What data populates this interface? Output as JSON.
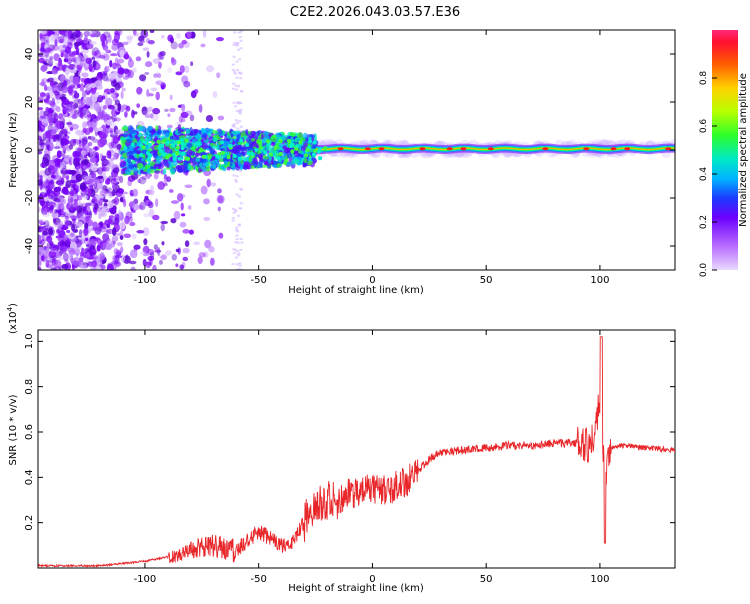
{
  "title": "C2E2.2026.043.03.57.E36",
  "chart_data": [
    {
      "type": "heatmap",
      "xlabel": "Height of straight line (km)",
      "ylabel": "Frequency (Hz)",
      "xlim": [
        -147,
        133
      ],
      "ylim": [
        -50,
        50
      ],
      "xticks": [
        -100,
        -50,
        0,
        50,
        100
      ],
      "yticks": [
        -40,
        -20,
        0,
        20,
        40
      ],
      "grid": false,
      "colorbar": {
        "label": "Normalized spectral amplitude",
        "range": [
          0.0,
          1.0
        ],
        "ticks": [
          "0.0",
          "0.2",
          "0.4",
          "0.6",
          "0.8"
        ]
      },
      "description_values": {
        "noise_region_x": [
          -147,
          -60
        ],
        "spread_band_x": [
          -110,
          -25
        ],
        "narrow_band_center_freq": 0.5,
        "narrow_band_x": [
          -25,
          133
        ]
      }
    },
    {
      "type": "line",
      "xlabel": "Height of straight line (km)",
      "ylabel": "SNR (10 * v/v)",
      "yscale_label": "(x10",
      "yscale_exp": "4",
      "yscale_close": ")",
      "xlim": [
        -147,
        133
      ],
      "ylim": [
        0,
        1.05
      ],
      "xticks": [
        -100,
        -50,
        0,
        50,
        100
      ],
      "yticks": [
        "0.2",
        "0.4",
        "0.6",
        "0.8",
        "1.0"
      ],
      "series_color": "#e8262a",
      "profile": {
        "x": [
          -147,
          -120,
          -100,
          -90,
          -80,
          -70,
          -60,
          -55,
          -50,
          -45,
          -40,
          -35,
          -30,
          -25,
          -20,
          -15,
          -10,
          -5,
          0,
          5,
          10,
          15,
          20,
          25,
          30,
          40,
          50,
          60,
          70,
          80,
          90,
          95,
          98,
          100,
          102,
          105,
          110,
          120,
          133
        ],
        "y": [
          0.01,
          0.01,
          0.03,
          0.05,
          0.08,
          0.1,
          0.08,
          0.12,
          0.16,
          0.13,
          0.1,
          0.12,
          0.2,
          0.28,
          0.3,
          0.29,
          0.33,
          0.34,
          0.35,
          0.34,
          0.36,
          0.38,
          0.43,
          0.48,
          0.51,
          0.52,
          0.53,
          0.54,
          0.54,
          0.55,
          0.55,
          0.54,
          0.6,
          0.75,
          0.4,
          0.53,
          0.54,
          0.53,
          0.52
        ]
      }
    }
  ]
}
